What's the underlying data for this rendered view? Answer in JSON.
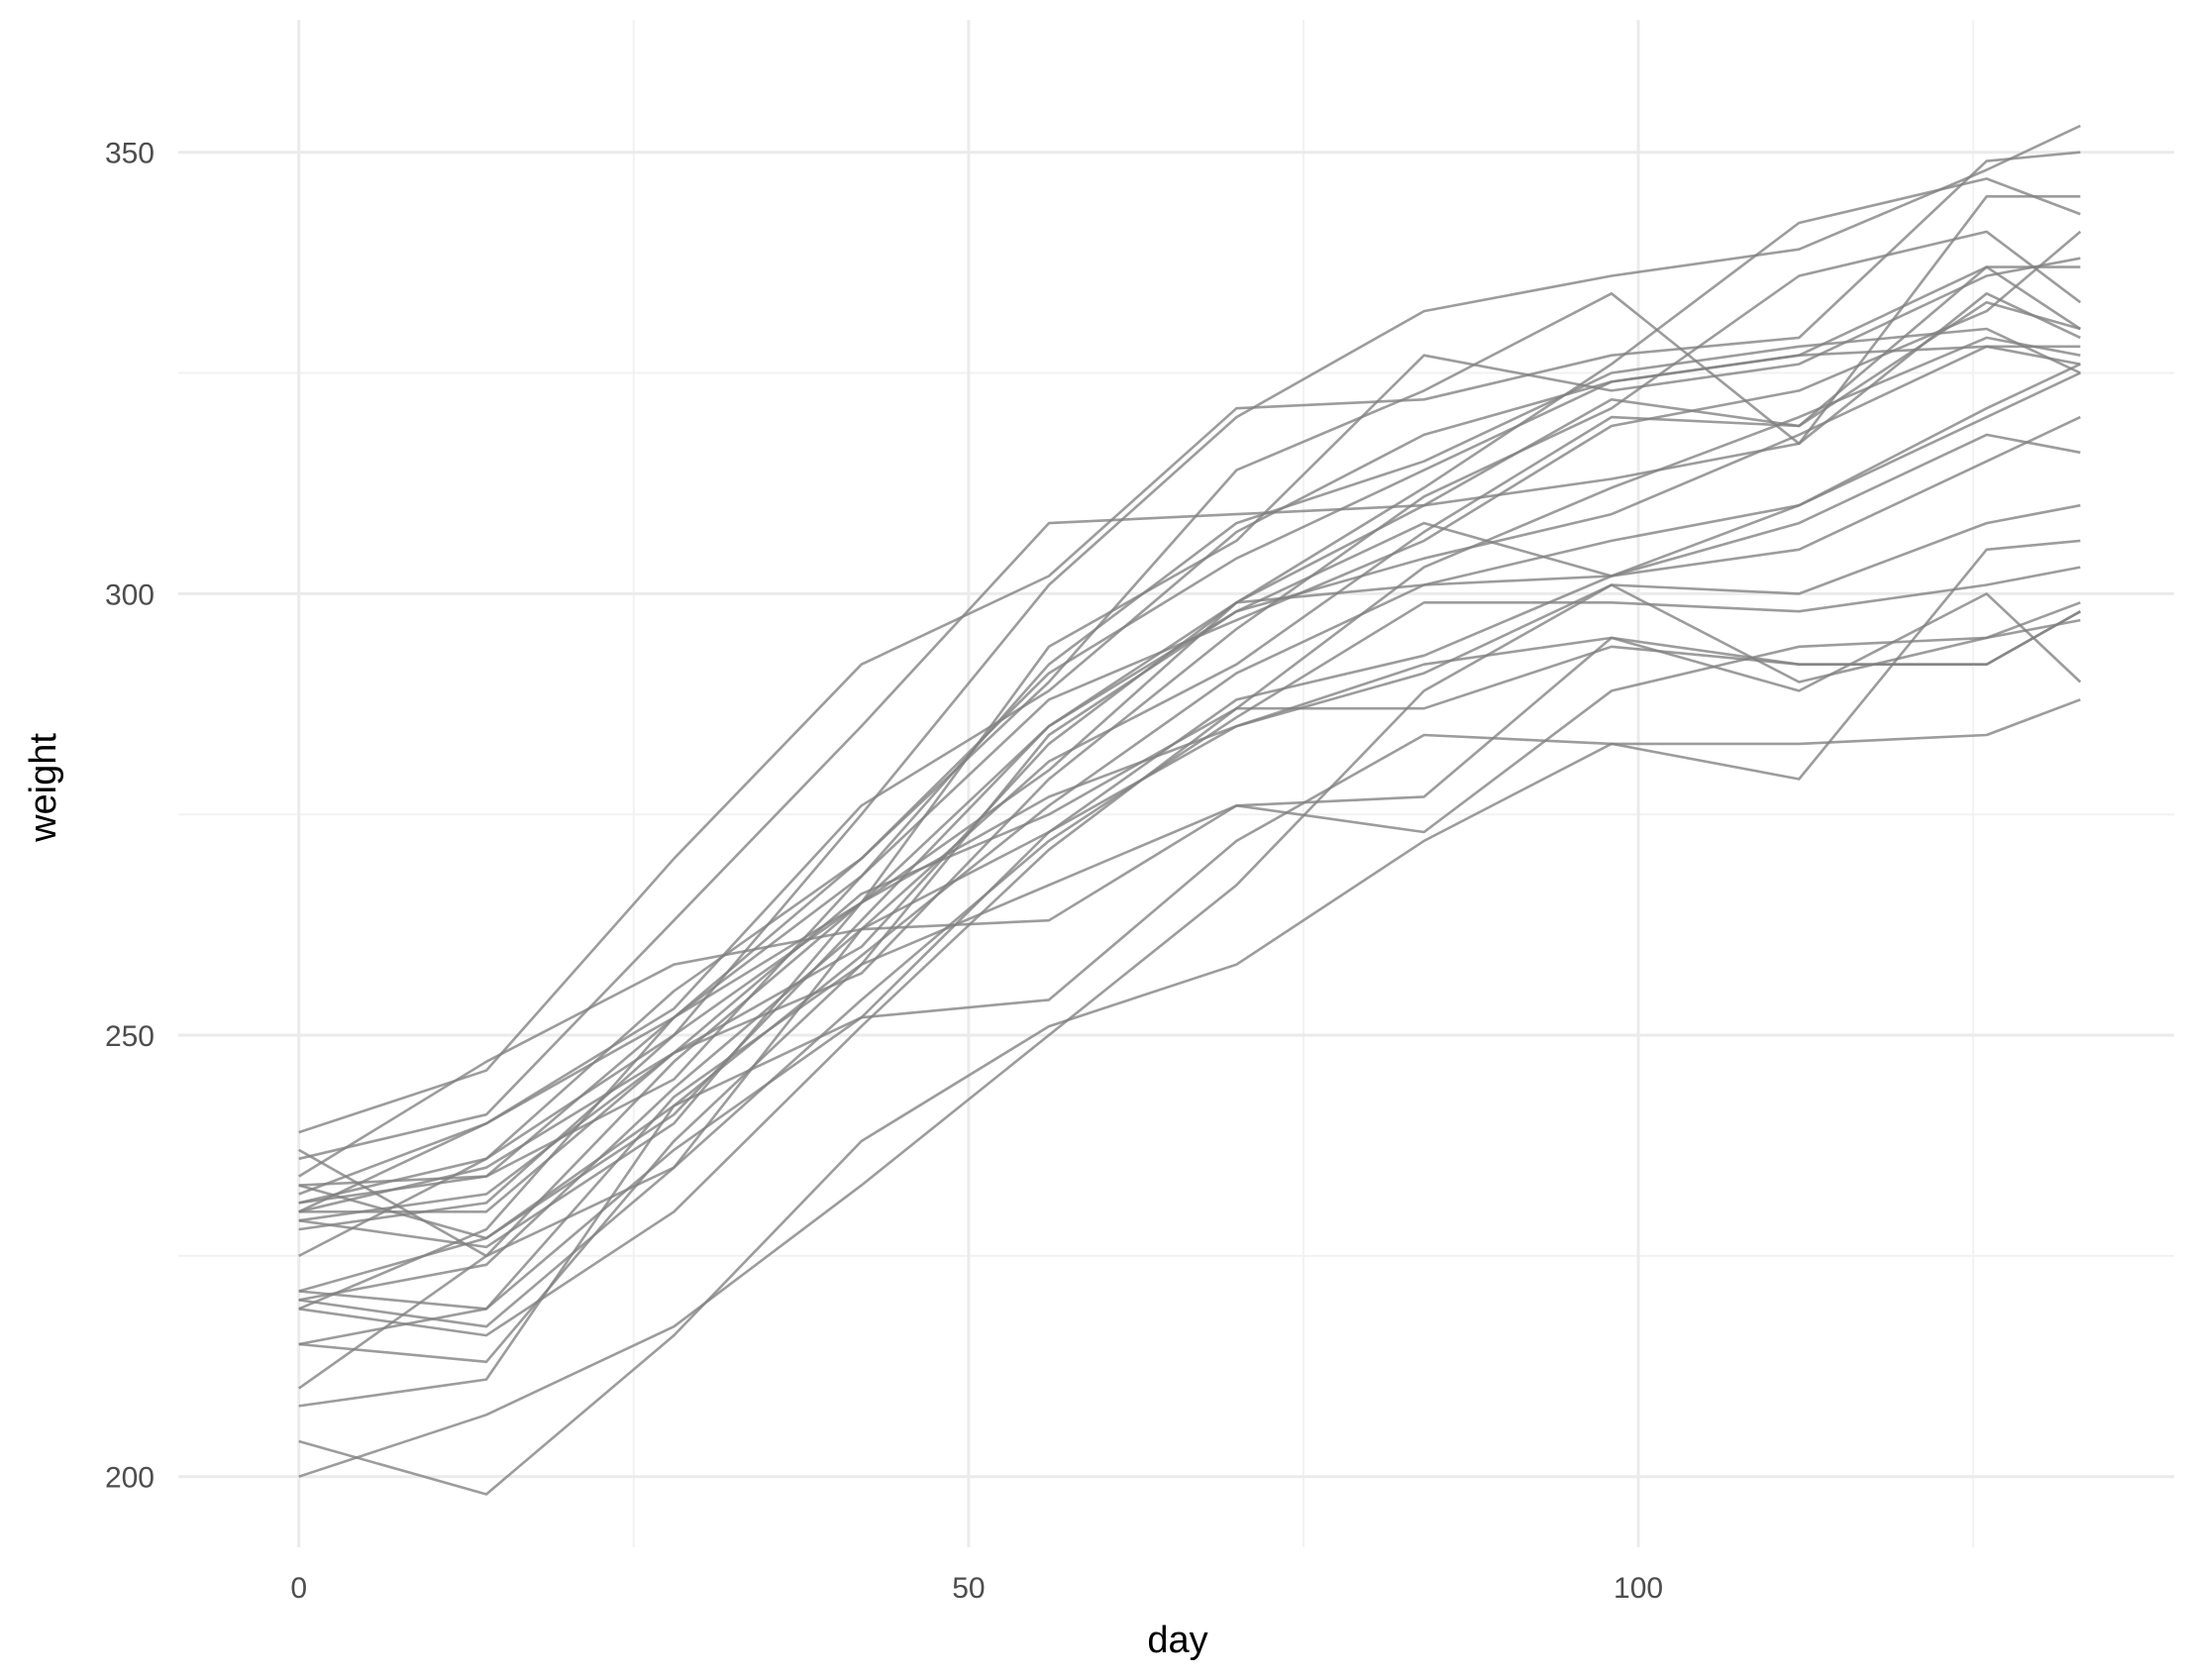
{
  "chart_data": {
    "type": "line",
    "title": "",
    "xlabel": "day",
    "ylabel": "weight",
    "xlim": [
      -9,
      140
    ],
    "ylim": [
      192,
      365
    ],
    "x_ticks": [
      0,
      50,
      100
    ],
    "x_tick_labels": [
      "0",
      "50",
      "100"
    ],
    "x_minor_ticks": [
      25,
      75,
      125
    ],
    "y_ticks": [
      200,
      250,
      300,
      350
    ],
    "y_tick_labels": [
      "200",
      "250",
      "300",
      "350"
    ],
    "y_minor_ticks": [
      225,
      275,
      325
    ],
    "grid": true,
    "legend": "none",
    "line_color": "#808080",
    "x": [
      0,
      14,
      28,
      42,
      56,
      70,
      84,
      98,
      112,
      126,
      133
    ],
    "series": [
      {
        "values": [
          239,
          246,
          270,
          292,
          302,
          321,
          322,
          327,
          329,
          349,
          350
        ]
      },
      {
        "values": [
          236,
          241,
          263,
          285,
          308,
          309,
          310,
          313,
          317,
          334,
          329
        ]
      },
      {
        "values": [
          234,
          247,
          258,
          262,
          263,
          276,
          277,
          295,
          292,
          292,
          298
        ]
      },
      {
        "values": [
          233,
          234,
          252,
          270,
          290,
          314,
          323,
          334,
          317,
          345,
          345
        ]
      },
      {
        "values": [
          232,
          240,
          253,
          276,
          289,
          307,
          318,
          324,
          327,
          337,
          337
        ]
      },
      {
        "values": [
          231,
          236,
          250,
          275,
          301,
          320,
          332,
          336,
          339,
          348,
          353
        ]
      },
      {
        "values": [
          230,
          240,
          252,
          268,
          288,
          297,
          306,
          319,
          323,
          332,
          341
        ]
      },
      {
        "values": [
          229,
          226,
          240,
          265,
          294,
          306,
          327,
          323,
          326,
          336,
          338
        ]
      },
      {
        "values": [
          230,
          235,
          248,
          266,
          275,
          287,
          303,
          312,
          320,
          329,
          327
        ]
      },
      {
        "values": [
          228,
          231,
          250,
          265,
          280,
          299,
          310,
          322,
          319,
          333,
          330
        ]
      },
      {
        "values": [
          231,
          234,
          245,
          268,
          292,
          308,
          315,
          325,
          328,
          330,
          325
        ]
      },
      {
        "values": [
          233,
          227,
          241,
          263,
          285,
          298,
          304,
          309,
          318,
          328,
          326
        ]
      },
      {
        "values": [
          230,
          230,
          248,
          260,
          283,
          299,
          312,
          326,
          342,
          347,
          343
        ]
      },
      {
        "values": [
          225,
          236,
          255,
          270,
          291,
          304,
          314,
          324,
          327,
          328,
          328
        ]
      },
      {
        "values": [
          220,
          224,
          244,
          262,
          281,
          292,
          307,
          320,
          319,
          337,
          330
        ]
      },
      {
        "values": [
          229,
          232,
          248,
          257,
          279,
          296,
          311,
          321,
          336,
          341,
          333
        ]
      },
      {
        "values": [
          237,
          225,
          235,
          262,
          273,
          288,
          293,
          302,
          305,
          315,
          320
        ]
      },
      {
        "values": [
          221,
          227,
          242,
          259,
          276,
          291,
          301,
          302,
          308,
          318,
          316
        ]
      },
      {
        "values": [
          219,
          228,
          252,
          265,
          285,
          299,
          301,
          306,
          310,
          320,
          325
        ]
      },
      {
        "values": [
          215,
          219,
          243,
          258,
          284,
          298,
          308,
          302,
          310,
          321,
          326
        ]
      },
      {
        "values": [
          220,
          217,
          235,
          254,
          272,
          286,
          299,
          299,
          298,
          301,
          303
        ]
      },
      {
        "values": [
          221,
          219,
          237,
          252,
          273,
          285,
          291,
          301,
          300,
          308,
          310
        ]
      },
      {
        "values": [
          210,
          225,
          247,
          265,
          277,
          285,
          292,
          295,
          289,
          300,
          290
        ]
      },
      {
        "values": [
          219,
          216,
          230,
          251,
          271,
          287,
          287,
          294,
          292,
          292,
          298
        ]
      },
      {
        "values": [
          215,
          213,
          238,
          258,
          267,
          276,
          273,
          289,
          294,
          295,
          297
        ]
      },
      {
        "values": [
          208,
          211,
          242,
          252,
          254,
          272,
          284,
          283,
          283,
          284,
          288
        ]
      },
      {
        "values": [
          204,
          198,
          216,
          238,
          251,
          258,
          272,
          283,
          279,
          305,
          306
        ]
      },
      {
        "values": [
          200,
          207,
          217,
          233,
          250,
          267,
          289,
          301,
          290,
          295,
          299
        ]
      }
    ]
  }
}
